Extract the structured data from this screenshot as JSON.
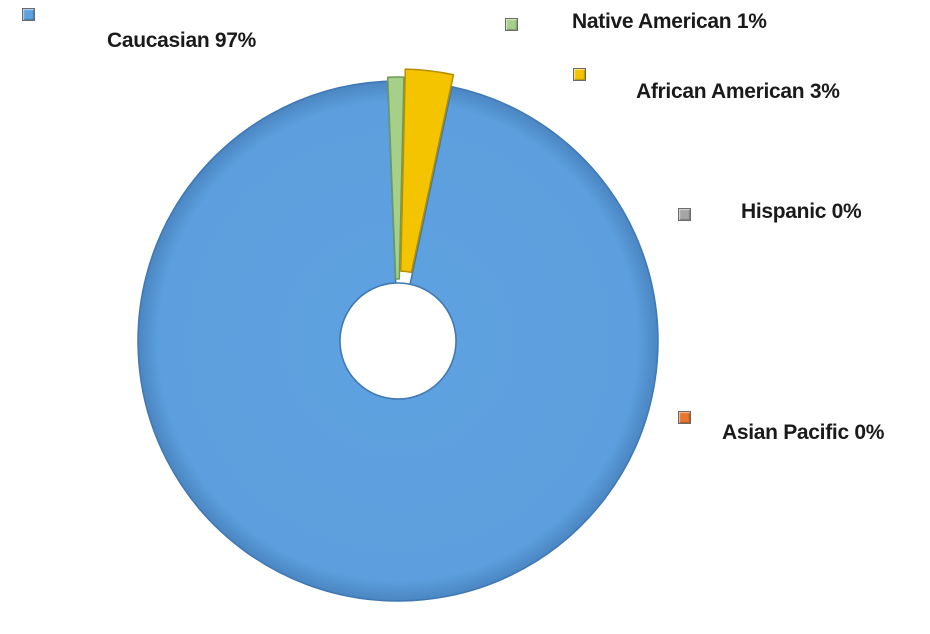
{
  "chart_data": {
    "type": "pie",
    "style": "exploded doughnut",
    "title": "",
    "categories": [
      "Caucasian",
      "Native American",
      "African American",
      "Hispanic",
      "Asian Pacific"
    ],
    "values": [
      97,
      1,
      3,
      0,
      0
    ],
    "unit": "%",
    "colors": [
      "#5fa2e0",
      "#a6d08a",
      "#f5c400",
      "#a6a6a6",
      "#e8762d"
    ],
    "legend": [
      {
        "name": "Caucasian",
        "label": "Caucasian 97%",
        "color": "#5fa2e0"
      },
      {
        "name": "Native American",
        "label": "Native American 1%",
        "color": "#a6d08a"
      },
      {
        "name": "African American",
        "label": "African American 3%",
        "color": "#f5c400"
      },
      {
        "name": "Hispanic",
        "label": "Hispanic 0%",
        "color": "#a6a6a6"
      },
      {
        "name": "Asian Pacific",
        "label": "Asian Pacific 0%",
        "color": "#e8762d"
      }
    ],
    "legend_placement": "around-chart"
  }
}
